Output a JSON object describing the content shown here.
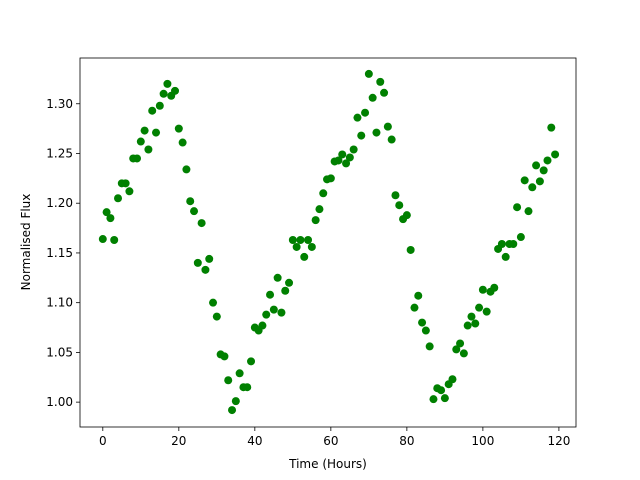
{
  "chart_data": {
    "type": "scatter",
    "xlabel": "Time (Hours)",
    "ylabel": "Normalised Flux",
    "color": "#008000",
    "x": [
      0,
      1,
      2,
      3,
      4,
      5,
      6,
      7,
      8,
      9,
      10,
      11,
      12,
      13,
      14,
      15,
      16,
      17,
      18,
      19,
      20,
      21,
      22,
      23,
      24,
      25,
      26,
      27,
      28,
      29,
      30,
      31,
      32,
      33,
      34,
      35,
      36,
      37,
      38,
      39,
      40,
      41,
      42,
      43,
      44,
      45,
      46,
      47,
      48,
      49,
      50,
      51,
      52,
      53,
      54,
      55,
      56,
      57,
      58,
      59,
      60,
      61,
      62,
      63,
      64,
      65,
      66,
      67,
      68,
      69,
      70,
      71,
      72,
      73,
      74,
      75,
      76,
      77,
      78,
      79,
      80,
      81,
      82,
      83,
      84,
      85,
      86,
      87,
      88,
      89,
      90,
      91,
      92,
      93,
      94,
      95,
      96,
      97,
      98,
      99,
      100,
      101,
      102,
      103,
      104,
      105,
      106,
      107,
      108,
      109,
      110,
      111,
      112,
      113,
      114,
      115,
      116,
      117,
      118,
      119
    ],
    "values": [
      1.164,
      1.191,
      1.185,
      1.163,
      1.205,
      1.22,
      1.22,
      1.212,
      1.245,
      1.245,
      1.262,
      1.273,
      1.254,
      1.293,
      1.271,
      1.298,
      1.31,
      1.32,
      1.308,
      1.313,
      1.275,
      1.261,
      1.234,
      1.202,
      1.192,
      1.14,
      1.18,
      1.133,
      1.144,
      1.1,
      1.086,
      1.048,
      1.046,
      1.022,
      0.992,
      1.001,
      1.029,
      1.015,
      1.015,
      1.041,
      1.075,
      1.072,
      1.077,
      1.088,
      1.108,
      1.093,
      1.125,
      1.09,
      1.112,
      1.12,
      1.163,
      1.156,
      1.163,
      1.146,
      1.163,
      1.156,
      1.183,
      1.194,
      1.21,
      1.224,
      1.225,
      1.242,
      1.243,
      1.249,
      1.24,
      1.246,
      1.254,
      1.286,
      1.268,
      1.291,
      1.33,
      1.306,
      1.271,
      1.322,
      1.311,
      1.277,
      1.264,
      1.208,
      1.198,
      1.184,
      1.188,
      1.153,
      1.095,
      1.107,
      1.08,
      1.072,
      1.056,
      1.003,
      1.014,
      1.012,
      1.004,
      1.018,
      1.023,
      1.053,
      1.059,
      1.049,
      1.077,
      1.086,
      1.079,
      1.095,
      1.113,
      1.091,
      1.111,
      1.115,
      1.154,
      1.159,
      1.146,
      1.159,
      1.159,
      1.196,
      1.166,
      1.223,
      1.192,
      1.216,
      1.238,
      1.222,
      1.233,
      1.243,
      1.276,
      1.249
    ],
    "xlim": [
      -6,
      124.5
    ],
    "xticks": [
      0,
      20,
      40,
      60,
      80,
      100,
      120
    ],
    "ylim": [
      0.975,
      1.346
    ],
    "yticks": [
      {
        "value": 1.0,
        "label": "1.00"
      },
      {
        "value": 1.05,
        "label": "1.05"
      },
      {
        "value": 1.1,
        "label": "1.10"
      },
      {
        "value": 1.15,
        "label": "1.15"
      },
      {
        "value": 1.2,
        "label": "1.20"
      },
      {
        "value": 1.25,
        "label": "1.25"
      },
      {
        "value": 1.3,
        "label": "1.30"
      }
    ]
  }
}
